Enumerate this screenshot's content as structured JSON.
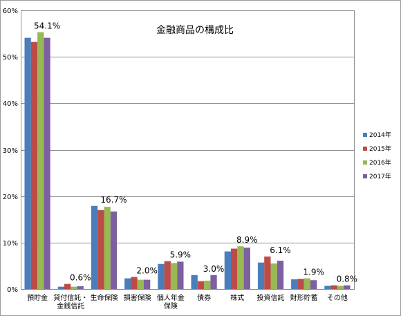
{
  "chart_data": {
    "type": "bar",
    "title": "金融商品の構成比",
    "xlabel": "",
    "ylabel": "",
    "ylim": [
      0,
      60
    ],
    "y_ticks": [
      "0%",
      "10%",
      "20%",
      "30%",
      "40%",
      "50%",
      "60%"
    ],
    "grid": true,
    "legend_position": "right",
    "categories": [
      [
        "預貯金"
      ],
      [
        "貸付信託・",
        "金銭信託"
      ],
      [
        "生命保険"
      ],
      [
        "損害保険"
      ],
      [
        "個人年金",
        "保険"
      ],
      [
        "債券"
      ],
      [
        "株式"
      ],
      [
        "投資信託"
      ],
      [
        "財形貯蓄"
      ],
      [
        "その他"
      ]
    ],
    "series": [
      {
        "name": "2014年",
        "color": "#4a7ebb",
        "values": [
          54.1,
          0.5,
          17.9,
          2.3,
          5.4,
          3.0,
          8.1,
          5.7,
          2.1,
          0.7
        ]
      },
      {
        "name": "2015年",
        "color": "#be4b48",
        "values": [
          53.2,
          1.1,
          17.0,
          2.6,
          6.0,
          1.7,
          8.7,
          7.0,
          2.2,
          0.8
        ]
      },
      {
        "name": "2016年",
        "color": "#98b954",
        "values": [
          55.3,
          0.5,
          17.7,
          2.0,
          5.6,
          1.8,
          9.2,
          5.5,
          2.3,
          0.7
        ]
      },
      {
        "name": "2017年",
        "color": "#7d60a0",
        "values": [
          54.1,
          0.6,
          16.7,
          2.0,
          5.9,
          3.0,
          8.9,
          6.1,
          1.9,
          0.8
        ]
      }
    ],
    "data_labels": [
      "54.1%",
      "0.6%",
      "16.7%",
      "2.0%",
      "5.9%",
      "3.0%",
      "8.9%",
      "6.1%",
      "1.9%",
      "0.8%"
    ]
  }
}
